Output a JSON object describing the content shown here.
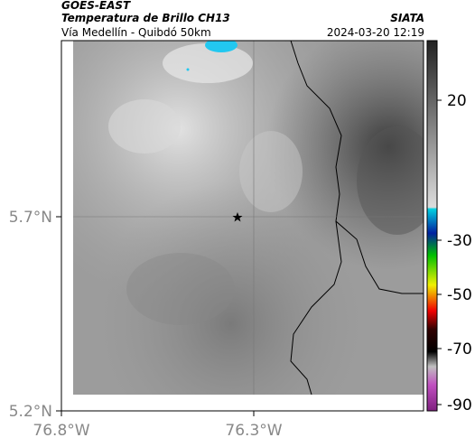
{
  "header": {
    "source": "GOES-EAST",
    "title": "Temperatura de Brillo CH13",
    "subtitle": "Vía Medellín - Quibdó 50km",
    "credit": "SIATA",
    "timestamp": "2024-03-20 12:19"
  },
  "axes": {
    "y_ticks": [
      "5.7°N",
      "5.2°N"
    ],
    "x_ticks": [
      "76.8°W",
      "76.3°W"
    ]
  },
  "colorbar": {
    "ticks": [
      20,
      -30,
      -50,
      -70,
      -90
    ]
  }
}
